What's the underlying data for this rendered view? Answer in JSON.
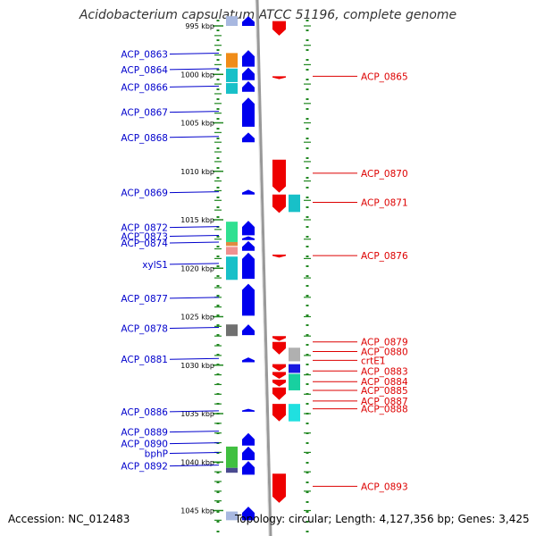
{
  "title": "Acidobacterium capsulatum ATCC 51196, complete genome",
  "footer": {
    "accession": "Accession: NC_012483",
    "topology": "Topology: circular; Length: 4,127,356 bp; Genes: 3,425"
  },
  "colors": {
    "forward": "#0000ee",
    "reverse": "#ee0000",
    "backbone": "#999999",
    "ruler": "#228822",
    "label_left": "#0000cc",
    "label_right": "#dd0000"
  },
  "ticks": [
    {
      "kbp": 995,
      "label": "995 kbp"
    },
    {
      "kbp": 1000,
      "label": "1000 kbp"
    },
    {
      "kbp": 1005,
      "label": "1005 kbp"
    },
    {
      "kbp": 1010,
      "label": "1010 kbp"
    },
    {
      "kbp": 1015,
      "label": "1015 kbp"
    },
    {
      "kbp": 1020,
      "label": "1020 kbp"
    },
    {
      "kbp": 1025,
      "label": "1025 kbp"
    },
    {
      "kbp": 1030,
      "label": "1030 kbp"
    },
    {
      "kbp": 1035,
      "label": "1035 kbp"
    },
    {
      "kbp": 1040,
      "label": "1040 kbp"
    },
    {
      "kbp": 1045,
      "label": "1045 kbp"
    }
  ],
  "left_labels": [
    {
      "name": "ACP_0863",
      "kbp": 998.0
    },
    {
      "name": "ACP_0864",
      "kbp": 999.5
    },
    {
      "name": "ACP_0866",
      "kbp": 1001.3
    },
    {
      "name": "ACP_0867",
      "kbp": 1003.9
    },
    {
      "name": "ACP_0868",
      "kbp": 1006.5
    },
    {
      "name": "ACP_0869",
      "kbp": 1012.2
    },
    {
      "name": "ACP_0872",
      "kbp": 1015.8
    },
    {
      "name": "ACP_0873",
      "kbp": 1016.7
    },
    {
      "name": "ACP_0874",
      "kbp": 1017.4
    },
    {
      "name": "xylS1",
      "kbp": 1019.6
    },
    {
      "name": "ACP_0877",
      "kbp": 1023.1
    },
    {
      "name": "ACP_0878",
      "kbp": 1026.2
    },
    {
      "name": "ACP_0881",
      "kbp": 1029.4
    },
    {
      "name": "ACP_0886",
      "kbp": 1034.8
    },
    {
      "name": "ACP_0889",
      "kbp": 1036.9
    },
    {
      "name": "ACP_0890",
      "kbp": 1038.1
    },
    {
      "name": "bphP",
      "kbp": 1039.1
    },
    {
      "name": "ACP_0892",
      "kbp": 1040.4
    }
  ],
  "right_labels": [
    {
      "name": "ACP_0865",
      "kbp": 1000.2
    },
    {
      "name": "ACP_0870",
      "kbp": 1010.2
    },
    {
      "name": "ACP_0871",
      "kbp": 1013.2
    },
    {
      "name": "ACP_0876",
      "kbp": 1018.7
    },
    {
      "name": "ACP_0879",
      "kbp": 1027.6
    },
    {
      "name": "ACP_0880",
      "kbp": 1028.6
    },
    {
      "name": "crtE1",
      "kbp": 1029.5
    },
    {
      "name": "ACP_0883",
      "kbp": 1030.6
    },
    {
      "name": "ACP_0884",
      "kbp": 1031.7
    },
    {
      "name": "ACP_0885",
      "kbp": 1032.6
    },
    {
      "name": "ACP_0887",
      "kbp": 1033.7
    },
    {
      "name": "ACP_0888",
      "kbp": 1034.5
    },
    {
      "name": "ACP_0893",
      "kbp": 1042.5
    }
  ],
  "forward_genes": [
    {
      "name": "f1",
      "start": 994.0,
      "end": 995.0
    },
    {
      "name": "f2",
      "start": 997.5,
      "end": 999.2
    },
    {
      "name": "f3",
      "start": 999.3,
      "end": 1000.6
    },
    {
      "name": "f4",
      "start": 1000.7,
      "end": 1001.8
    },
    {
      "name": "f5",
      "start": 1002.4,
      "end": 1005.4
    },
    {
      "name": "f6",
      "start": 1006.0,
      "end": 1007.0
    },
    {
      "name": "f7",
      "start": 1011.9,
      "end": 1012.4
    },
    {
      "name": "f8",
      "start": 1015.1,
      "end": 1016.6
    },
    {
      "name": "f9",
      "start": 1016.7,
      "end": 1017.1
    },
    {
      "name": "f10",
      "start": 1017.2,
      "end": 1018.2
    },
    {
      "name": "f11",
      "start": 1018.4,
      "end": 1021.1
    },
    {
      "name": "f12",
      "start": 1021.6,
      "end": 1024.9
    },
    {
      "name": "f13",
      "start": 1025.8,
      "end": 1026.9
    },
    {
      "name": "f14",
      "start": 1029.2,
      "end": 1029.7
    },
    {
      "name": "f15",
      "start": 1034.5,
      "end": 1034.8
    },
    {
      "name": "f16",
      "start": 1037.0,
      "end": 1038.3
    },
    {
      "name": "f17",
      "start": 1038.4,
      "end": 1039.8
    },
    {
      "name": "f18",
      "start": 1039.9,
      "end": 1041.3
    },
    {
      "name": "f19",
      "start": 1044.6,
      "end": 1046.0
    }
  ],
  "reverse_genes": [
    {
      "name": "r1",
      "start": 994.5,
      "end": 996.0
    },
    {
      "name": "r2",
      "start": 1000.2,
      "end": 1000.5
    },
    {
      "name": "r3",
      "start": 1008.8,
      "end": 1012.2
    },
    {
      "name": "r4",
      "start": 1012.4,
      "end": 1014.3
    },
    {
      "name": "r5",
      "start": 1018.6,
      "end": 1018.9
    },
    {
      "name": "r6",
      "start": 1027.0,
      "end": 1027.5
    },
    {
      "name": "r7",
      "start": 1027.6,
      "end": 1028.9
    },
    {
      "name": "r8",
      "start": 1029.9,
      "end": 1030.6
    },
    {
      "name": "r9",
      "start": 1030.7,
      "end": 1031.4
    },
    {
      "name": "r10",
      "start": 1031.5,
      "end": 1032.2
    },
    {
      "name": "r11",
      "start": 1032.3,
      "end": 1033.6
    },
    {
      "name": "r12",
      "start": 1034.0,
      "end": 1035.8
    },
    {
      "name": "r13",
      "start": 1041.2,
      "end": 1044.2
    }
  ],
  "left_blocks": [
    {
      "name": "ACP_0863",
      "start": 997.8,
      "end": 999.3,
      "color": "#f08c18"
    },
    {
      "name": "ACP_0864",
      "start": 999.4,
      "end": 1000.8,
      "color": "#18c0c8"
    },
    {
      "name": "ACP_0866",
      "start": 1000.9,
      "end": 1002.0,
      "color": "#18c0c8"
    },
    {
      "name": "ACP_0872",
      "start": 1015.2,
      "end": 1017.3,
      "color": "#30e090"
    },
    {
      "name": "ACP_0873",
      "start": 1017.3,
      "end": 1017.7,
      "color": "#e08a40"
    },
    {
      "name": "ACP_0874",
      "start": 1017.8,
      "end": 1018.6,
      "color": "#f09090"
    },
    {
      "name": "xylS1",
      "start": 1018.8,
      "end": 1021.2,
      "color": "#18c0c8"
    },
    {
      "name": "ACP_0878",
      "start": 1025.8,
      "end": 1027.0,
      "color": "#707070"
    },
    {
      "name": "bphP",
      "start": 1038.4,
      "end": 1040.6,
      "color": "#40c040"
    },
    {
      "name": "ACP_0892",
      "start": 1040.6,
      "end": 1041.1,
      "color": "#4a4a90"
    },
    {
      "name": "top",
      "start": 994.0,
      "end": 995.0,
      "color": "#a8b8e0"
    },
    {
      "name": "bottom",
      "start": 1045.1,
      "end": 1046.0,
      "color": "#a8b8e0"
    }
  ],
  "right_blocks": [
    {
      "name": "ACP_0871",
      "start": 1012.4,
      "end": 1014.2,
      "color": "#18c0c8"
    },
    {
      "name": "ACP_0880",
      "start": 1028.2,
      "end": 1029.6,
      "color": "#b0b0b0"
    },
    {
      "name": "ACP_0883",
      "start": 1029.9,
      "end": 1030.8,
      "color": "#1818e0"
    },
    {
      "name": "ACP_0884",
      "start": 1030.9,
      "end": 1032.6,
      "color": "#18d0a0"
    },
    {
      "name": "ACP_0887",
      "start": 1034.0,
      "end": 1035.8,
      "color": "#20e0e0"
    }
  ]
}
